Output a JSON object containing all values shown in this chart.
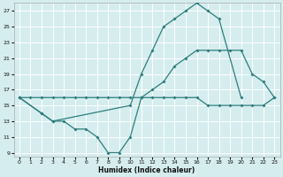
{
  "background_color": "#d5edef",
  "grid_color": "#ffffff",
  "line_color": "#2e7d7d",
  "xlabel": "Humidex (Indice chaleur)",
  "xlim": [
    -0.5,
    23.5
  ],
  "ylim": [
    8.5,
    28
  ],
  "yticks": [
    9,
    11,
    13,
    15,
    17,
    19,
    21,
    23,
    25,
    27
  ],
  "xticks": [
    0,
    1,
    2,
    3,
    4,
    5,
    6,
    7,
    8,
    9,
    10,
    11,
    12,
    13,
    14,
    15,
    16,
    17,
    18,
    19,
    20,
    21,
    22,
    23
  ],
  "line_flat_x": [
    0,
    1,
    2,
    3,
    4,
    5,
    6,
    7,
    8,
    9,
    10,
    11,
    12,
    13,
    14,
    15,
    16,
    17,
    18,
    19,
    20,
    21,
    22,
    23
  ],
  "line_flat_y": [
    16,
    16,
    16,
    16,
    16,
    16,
    16,
    16,
    16,
    16,
    16,
    16,
    16,
    16,
    16,
    16,
    16,
    15,
    15,
    15,
    15,
    15,
    15,
    16
  ],
  "line_high_x": [
    0,
    2,
    3,
    10,
    11,
    12,
    13,
    14,
    15,
    16,
    17,
    18,
    20
  ],
  "line_high_y": [
    16,
    14,
    13,
    15,
    19,
    22,
    25,
    26,
    27,
    28,
    27,
    26,
    16
  ],
  "line_low_x": [
    0,
    2,
    3,
    4,
    5,
    6,
    7,
    8,
    9,
    10,
    11,
    12,
    13,
    14,
    15,
    16,
    17,
    18,
    19,
    20,
    21,
    22,
    23
  ],
  "line_low_y": [
    16,
    14,
    13,
    13,
    12,
    12,
    11,
    9,
    9,
    11,
    16,
    17,
    18,
    20,
    21,
    22,
    22,
    22,
    22,
    22,
    19,
    18,
    16
  ]
}
